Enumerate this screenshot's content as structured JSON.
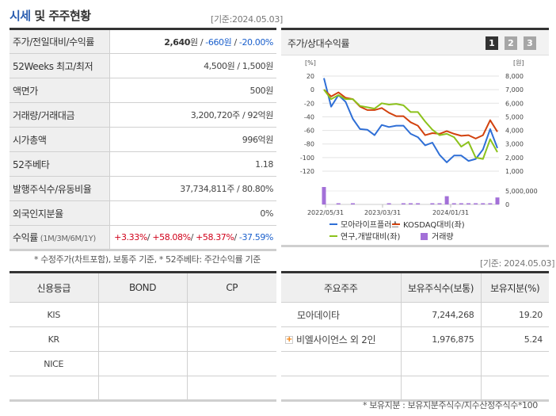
{
  "header": {
    "title_accent": "시세",
    "title_rest": " 및 주주현황",
    "basis_date": "[기준:2024.05.03]"
  },
  "price_table": {
    "rows": [
      {
        "label": "주가/전일대비/수익률",
        "price": "2,640",
        "unit": "원",
        "sep1": " / ",
        "change": "-660원",
        "sep2": " / ",
        "rate": "-20.00%"
      },
      {
        "label": "52Weeks 최고/최저",
        "value": "4,500원 / 1,500원"
      },
      {
        "label": "액면가",
        "value": "500원"
      },
      {
        "label": "거래량/거래대금",
        "value": "3,200,720주 / 92억원"
      },
      {
        "label": "시가총액",
        "value": "996억원"
      },
      {
        "label": "52주베타",
        "value": "1.18"
      },
      {
        "label": "발행주식수/유동비율",
        "value": "37,734,811주 / 80.80%"
      },
      {
        "label": "외국인지분율",
        "value": "0%"
      },
      {
        "label": "수익률",
        "label_small": " (1M/3M/6M/1Y)",
        "r1": "+3.33%",
        "r2": "+58.08%",
        "r3": "+58.37%",
        "r4": "-37.59%"
      }
    ],
    "note": "* 수정주가(차트포함), 보통주 기준, * 52주베타: 주간수익률 기준"
  },
  "chart_panel": {
    "title": "주가/상대수익률",
    "pages": [
      "1",
      "2",
      "3"
    ],
    "active_page": "1"
  },
  "chart_data": {
    "type": "line",
    "title": "주가/상대수익률",
    "left_axis_label": "[%]",
    "right_axis_label": "[원]",
    "left_ticks": [
      20,
      0,
      -20,
      -40,
      -60,
      -80,
      -100,
      -120
    ],
    "right_ticks": [
      "8,000",
      "7,000",
      "6,000",
      "5,000",
      "4,000",
      "3,000",
      "2,000",
      "1,000"
    ],
    "volume_ticks": [
      "5,000,000",
      "0"
    ],
    "x_ticks": [
      "2022/05/31",
      "2023/03/31",
      "2024/01/31"
    ],
    "ylim_left": [
      -120,
      20
    ],
    "ylim_right": [
      1000,
      8000
    ],
    "series": [
      {
        "name": "모아라이프플러스",
        "color": "#2f6fd6",
        "values": [
          17,
          -25,
          -8,
          -18,
          -43,
          -58,
          -59,
          -67,
          -52,
          -55,
          -53,
          -53,
          -65,
          -70,
          -82,
          -78,
          -96,
          -107,
          -97,
          -97,
          -105,
          -102,
          -88,
          -58,
          -86
        ]
      },
      {
        "name": "KOSDAQ대비(좌)",
        "color": "#d2420e",
        "values": [
          0,
          -10,
          -4,
          -12,
          -14,
          -25,
          -30,
          -30,
          -27,
          -34,
          -39,
          -39,
          -48,
          -53,
          -67,
          -64,
          -65,
          -61,
          -65,
          -68,
          -67,
          -72,
          -67,
          -45,
          -62
        ]
      },
      {
        "name": "연구,개발대비(좌)",
        "color": "#8cc21c",
        "values": [
          0,
          -14,
          -8,
          -14,
          -14,
          -24,
          -26,
          -28,
          -20,
          -22,
          -21,
          -23,
          -33,
          -33,
          -47,
          -59,
          -67,
          -65,
          -70,
          -84,
          -77,
          -100,
          -102,
          -73,
          -92
        ]
      },
      {
        "name": "거래량",
        "color": "#a370d8",
        "type": "bar",
        "values": [
          5500000,
          0,
          100000,
          0,
          250000,
          0,
          0,
          0,
          0,
          100000,
          0,
          100000,
          100000,
          100000,
          0,
          100000,
          100000,
          2600000,
          100000,
          100000,
          100000,
          100000,
          250000,
          250000,
          2200000
        ]
      }
    ],
    "legend": [
      "모아라이프플러스",
      "KOSDAQ대비(좌)",
      "연구,개발대비(좌)",
      "거래량"
    ]
  },
  "credit_table": {
    "headers": [
      "신용등급",
      "BOND",
      "CP"
    ],
    "rows": [
      [
        "KIS",
        "",
        ""
      ],
      [
        "KR",
        "",
        ""
      ],
      [
        "NICE",
        "",
        ""
      ],
      [
        "",
        "",
        ""
      ]
    ]
  },
  "shareholder_table": {
    "basis_date": "[기준: 2024.05.03]",
    "headers": [
      "주요주주",
      "보유주식수(보통)",
      "보유지분(%)"
    ],
    "rows": [
      {
        "name": "모아데이타",
        "shares": "7,244,268",
        "pct": "19.20",
        "expandable": false
      },
      {
        "name": "비엘사이언스 외 2인",
        "shares": "1,976,875",
        "pct": "5.24",
        "expandable": true
      },
      {
        "name": "",
        "shares": "",
        "pct": ""
      },
      {
        "name": "",
        "shares": "",
        "pct": ""
      }
    ],
    "note": "* 보유지분 : 보유지분주식수/지수산정주식수*100"
  }
}
